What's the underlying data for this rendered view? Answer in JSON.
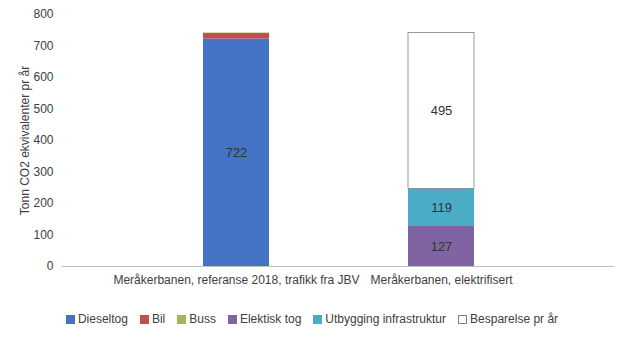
{
  "chart_data": {
    "type": "bar",
    "stacked": true,
    "y_label": "Tonn CO2 ekvivalenter pr år",
    "categories": [
      "Meråkerbanen, referanse 2018, trafikk fra JBV",
      "Meråkerbanen, elektrifisert"
    ],
    "series": [
      {
        "name": "Dieseltog",
        "color": "#4472c4",
        "values": [
          722,
          null
        ],
        "data_labels": true
      },
      {
        "name": "Bil",
        "color": "#c0504d",
        "values": [
          18,
          null
        ],
        "data_labels": false
      },
      {
        "name": "Buss",
        "color": "#9bbb59",
        "values": [
          1,
          null
        ],
        "data_labels": false
      },
      {
        "name": "Elektisk tog",
        "color": "#8064a2",
        "values": [
          null,
          127
        ],
        "data_labels": true
      },
      {
        "name": "Utbygging infrastruktur",
        "color": "#4bacc6",
        "values": [
          null,
          119
        ],
        "data_labels": true
      },
      {
        "name": "Besparelse pr år",
        "color": "#ffffff",
        "values": [
          null,
          495
        ],
        "data_labels": true
      }
    ],
    "ylim": [
      0,
      800
    ],
    "yticks": [
      0,
      100,
      200,
      300,
      400,
      500,
      600,
      700,
      800
    ],
    "grid": false,
    "legend": "bottom"
  }
}
